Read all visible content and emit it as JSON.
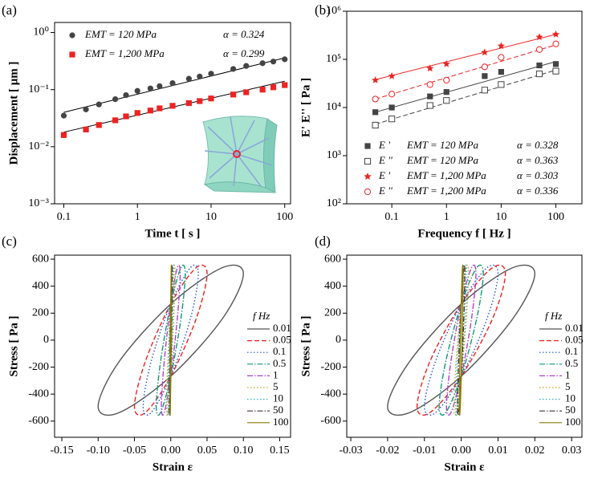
{
  "chart_data": [
    {
      "type": "scatter",
      "panel": "(a)",
      "xscale": "log",
      "yscale": "log",
      "x_label": "Time t  [ s ]",
      "y_label": "Displacement  [ μm ]",
      "xlim": [
        0.075,
        120
      ],
      "ylim": [
        0.001,
        1.5
      ],
      "xticks": [
        0.1,
        1,
        10,
        100
      ],
      "yticks": [
        {
          "value": 0.001,
          "label": "10⁻³"
        },
        {
          "value": 0.01,
          "label": "10⁻²"
        },
        {
          "value": 0.1,
          "label": "10⁻¹"
        },
        {
          "value": 1,
          "label": "10⁰"
        }
      ],
      "series": [
        {
          "name": "EMT = 120 MPa",
          "alpha": "α = 0.324",
          "color": "#444444",
          "marker": "circle",
          "x": [
            0.1,
            0.2,
            0.3,
            0.5,
            0.7,
            1,
            1.5,
            2,
            3,
            5,
            7,
            10,
            20,
            30,
            50,
            70,
            100
          ],
          "values": [
            0.035,
            0.045,
            0.055,
            0.068,
            0.08,
            0.095,
            0.105,
            0.115,
            0.13,
            0.155,
            0.17,
            0.19,
            0.23,
            0.26,
            0.29,
            0.31,
            0.34
          ],
          "fit": {
            "x": [
              0.1,
              100
            ],
            "y": [
              0.04,
              0.36
            ]
          },
          "fit_color": "#000000",
          "fit_dash": "solid"
        },
        {
          "name": "EMT = 1,200 MPa",
          "alpha": "α = 0.299",
          "color": "#ee2222",
          "marker": "square",
          "x": [
            0.1,
            0.2,
            0.3,
            0.5,
            0.7,
            1,
            1.5,
            2,
            3,
            5,
            7,
            10,
            20,
            30,
            50,
            70,
            100
          ],
          "values": [
            0.016,
            0.02,
            0.024,
            0.029,
            0.034,
            0.039,
            0.043,
            0.047,
            0.052,
            0.058,
            0.063,
            0.07,
            0.082,
            0.09,
            0.1,
            0.11,
            0.12
          ],
          "fit": {
            "x": [
              0.1,
              100
            ],
            "y": [
              0.018,
              0.14
            ]
          },
          "fit_color": "#000000",
          "fit_dash": "solid"
        }
      ]
    },
    {
      "type": "scatter",
      "panel": "(b)",
      "xscale": "log",
      "yscale": "log",
      "x_label": "Frequency  f  [ Hz ]",
      "y_label": "E'  E''  [ Pa ]",
      "xlim": [
        0.015,
        300
      ],
      "ylim": [
        100,
        1000000
      ],
      "xticks": [
        0.1,
        1,
        10,
        100
      ],
      "yticks": [
        {
          "value": 100,
          "label": "10²"
        },
        {
          "value": 1000,
          "label": "10³"
        },
        {
          "value": 10000,
          "label": "10⁴"
        },
        {
          "value": 100000,
          "label": "10⁵"
        },
        {
          "value": 1000000,
          "label": "10⁶"
        }
      ],
      "series": [
        {
          "name": "E '",
          "label": "EMT = 120 MPa",
          "alpha": "α = 0.328",
          "color": "#444444",
          "marker": "square",
          "x": [
            0.05,
            0.1,
            0.5,
            1,
            5,
            10,
            50,
            100
          ],
          "values": [
            8000,
            10000,
            17000,
            21000,
            45000,
            55000,
            75000,
            80000
          ],
          "fit": {
            "x": [
              0.05,
              100
            ],
            "y": [
              8000,
              90000
            ]
          },
          "fit_color": "#444444",
          "fit_dash": "solid"
        },
        {
          "name": "E ''",
          "label": "EMT = 120 MPa",
          "alpha": "α = 0.363",
          "color": "#444444",
          "marker": "square-open",
          "x": [
            0.05,
            0.1,
            0.5,
            1,
            5,
            10,
            50,
            100
          ],
          "values": [
            4300,
            5800,
            11000,
            14000,
            23000,
            30000,
            50000,
            57000
          ],
          "fit": {
            "x": [
              0.05,
              100
            ],
            "y": [
              4500,
              60000
            ]
          },
          "fit_color": "#444444",
          "fit_dash": "dashed"
        },
        {
          "name": "E '",
          "label": "EMT = 1,200 MPa",
          "alpha": "α = 0.303",
          "color": "#ee2222",
          "marker": "star",
          "x": [
            0.05,
            0.1,
            0.5,
            1,
            5,
            10,
            50,
            100
          ],
          "values": [
            37000,
            45000,
            65000,
            80000,
            140000,
            190000,
            290000,
            330000
          ],
          "fit": {
            "x": [
              0.05,
              100
            ],
            "y": [
              38000,
              330000
            ]
          },
          "fit_color": "#ee2222",
          "fit_dash": "solid"
        },
        {
          "name": "E ''",
          "label": "EMT = 1,200 MPa",
          "alpha": "α = 0.336",
          "color": "#ee2222",
          "marker": "circle-open",
          "x": [
            0.05,
            0.1,
            0.5,
            1,
            5,
            10,
            50,
            100
          ],
          "values": [
            15000,
            19000,
            30000,
            37000,
            70000,
            110000,
            160000,
            210000
          ],
          "fit": {
            "x": [
              0.05,
              100
            ],
            "y": [
              15000,
              200000
            ]
          },
          "fit_color": "#ee2222",
          "fit_dash": "dashed"
        }
      ]
    },
    {
      "type": "loop",
      "panel": "(c)",
      "x_label": "Strain  ε",
      "y_label": "Stress  [ Pa ]",
      "legend_title": "f  Hz",
      "xlim": [
        -0.16,
        0.165
      ],
      "ylim": [
        -720,
        630
      ],
      "xticks": [
        {
          "value": -0.15,
          "label": "-0.15"
        },
        {
          "value": -0.1,
          "label": "-0.10"
        },
        {
          "value": -0.05,
          "label": "-0.05"
        },
        {
          "value": 0,
          "label": "0.00"
        },
        {
          "value": 0.05,
          "label": "0.05"
        },
        {
          "value": 0.1,
          "label": "0.10"
        },
        {
          "value": 0.15,
          "label": "0.15"
        }
      ],
      "yticks": [
        -600,
        -400,
        -200,
        0,
        200,
        400,
        600
      ],
      "series": [
        {
          "name": "0.01",
          "color": "#555555",
          "dash": "solid",
          "x": [
            0,
            0.071,
            0.1,
            0.071,
            0,
            -0.071,
            -0.1,
            -0.071
          ],
          "values": [
            268,
            537,
            492,
            158,
            -268,
            -537,
            -492,
            -158
          ]
        },
        {
          "name": "0.05",
          "color": "#ee2222",
          "dash": "dashed",
          "x": [
            0,
            0.035,
            0.05,
            0.035,
            0,
            -0.035,
            -0.05,
            -0.035
          ],
          "values": [
            268,
            537,
            492,
            158,
            -268,
            -537,
            -492,
            -158
          ]
        },
        {
          "name": "0.1",
          "color": "#2255dd",
          "dash": "dotted",
          "x": [
            0,
            0.027,
            0.038,
            0.027,
            0,
            -0.027,
            -0.038,
            -0.027
          ],
          "values": [
            268,
            537,
            492,
            158,
            -268,
            -537,
            -492,
            -158
          ]
        },
        {
          "name": "0.5",
          "color": "#119977",
          "dash": "dashdot",
          "x": [
            0,
            0.014,
            0.02,
            0.014,
            0,
            -0.014,
            -0.02,
            -0.014
          ],
          "values": [
            268,
            537,
            492,
            158,
            -268,
            -537,
            -492,
            -158
          ]
        },
        {
          "name": "1",
          "color": "#b040d0",
          "dash": "dashdot",
          "x": [
            0,
            0.009,
            0.013,
            0.009,
            0,
            -0.009,
            -0.013,
            -0.009
          ],
          "values": [
            268,
            537,
            492,
            158,
            -268,
            -537,
            -492,
            -158
          ]
        },
        {
          "name": "5",
          "color": "#d4a017",
          "dash": "dotted",
          "x": [
            0,
            0.004,
            0.006,
            0.004,
            0,
            -0.004,
            -0.006,
            -0.004
          ],
          "values": [
            268,
            537,
            492,
            158,
            -268,
            -537,
            -492,
            -158
          ]
        },
        {
          "name": "10",
          "color": "#22b5c8",
          "dash": "dotted",
          "x": [
            0,
            0.003,
            0.004,
            0.003,
            0,
            -0.003,
            -0.004,
            -0.003
          ],
          "values": [
            268,
            537,
            492,
            158,
            -268,
            -537,
            -492,
            -158
          ]
        },
        {
          "name": "50",
          "color": "#443333",
          "dash": "dashdot",
          "x": [
            0,
            0.0014,
            0.002,
            0.0014,
            0,
            -0.0014,
            -0.002,
            -0.0014
          ],
          "values": [
            268,
            537,
            492,
            158,
            -268,
            -537,
            -492,
            -158
          ]
        },
        {
          "name": "100",
          "color": "#8a7a00",
          "dash": "solid",
          "x": [
            0,
            0.0007,
            0.001,
            0.0007,
            0,
            -0.0007,
            -0.001,
            -0.0007
          ],
          "values": [
            268,
            537,
            492,
            158,
            -268,
            -537,
            -492,
            -158
          ]
        }
      ]
    },
    {
      "type": "loop",
      "panel": "(d)",
      "x_label": "Strain  ε",
      "y_label": "Stress  [ Pa ]",
      "legend_title": "f  Hz",
      "xlim": [
        -0.0311,
        0.0328
      ],
      "ylim": [
        -720,
        630
      ],
      "xticks": [
        {
          "value": -0.03,
          "label": "-0.03"
        },
        {
          "value": -0.02,
          "label": "-0.02"
        },
        {
          "value": -0.01,
          "label": "-0.01"
        },
        {
          "value": 0,
          "label": "0.00"
        },
        {
          "value": 0.01,
          "label": "0.01"
        },
        {
          "value": 0.02,
          "label": "0.02"
        },
        {
          "value": 0.03,
          "label": "0.03"
        }
      ],
      "yticks": [
        -600,
        -400,
        -200,
        0,
        200,
        400,
        600
      ],
      "series": [
        {
          "name": "0.01",
          "color": "#555555",
          "dash": "solid",
          "x": [
            0,
            0.014,
            0.02,
            0.014,
            0,
            -0.014,
            -0.02,
            -0.014
          ],
          "values": [
            268,
            537,
            492,
            158,
            -268,
            -537,
            -492,
            -158
          ]
        },
        {
          "name": "0.05",
          "color": "#ee2222",
          "dash": "dashed",
          "x": [
            0,
            0.0085,
            0.012,
            0.0085,
            0,
            -0.0085,
            -0.012,
            -0.0085
          ],
          "values": [
            268,
            537,
            492,
            158,
            -268,
            -537,
            -492,
            -158
          ]
        },
        {
          "name": "0.1",
          "color": "#2255dd",
          "dash": "dotted",
          "x": [
            0,
            0.007,
            0.01,
            0.007,
            0,
            -0.007,
            -0.01,
            -0.007
          ],
          "values": [
            268,
            537,
            492,
            158,
            -268,
            -537,
            -492,
            -158
          ]
        },
        {
          "name": "0.5",
          "color": "#119977",
          "dash": "dashdot",
          "x": [
            0,
            0.0042,
            0.006,
            0.0042,
            0,
            -0.0042,
            -0.006,
            -0.0042
          ],
          "values": [
            268,
            537,
            492,
            158,
            -268,
            -537,
            -492,
            -158
          ]
        },
        {
          "name": "1",
          "color": "#b040d0",
          "dash": "dashdot",
          "x": [
            0,
            0.0028,
            0.004,
            0.0028,
            0,
            -0.0028,
            -0.004,
            -0.0028
          ],
          "values": [
            268,
            537,
            492,
            158,
            -268,
            -537,
            -492,
            -158
          ]
        },
        {
          "name": "5",
          "color": "#d4a017",
          "dash": "dotted",
          "x": [
            0,
            0.0014,
            0.002,
            0.0014,
            0,
            -0.0014,
            -0.002,
            -0.0014
          ],
          "values": [
            268,
            537,
            492,
            158,
            -268,
            -537,
            -492,
            -158
          ]
        },
        {
          "name": "10",
          "color": "#22b5c8",
          "dash": "dotted",
          "x": [
            0,
            0.0011,
            0.0015,
            0.0011,
            0,
            -0.0011,
            -0.0015,
            -0.0011
          ],
          "values": [
            268,
            537,
            492,
            158,
            -268,
            -537,
            -492,
            -158
          ]
        },
        {
          "name": "50",
          "color": "#443333",
          "dash": "dashdot",
          "x": [
            0,
            0.0007,
            0.001,
            0.0007,
            0,
            -0.0007,
            -0.001,
            -0.0007
          ],
          "values": [
            268,
            537,
            492,
            158,
            -268,
            -537,
            -492,
            -158
          ]
        },
        {
          "name": "100",
          "color": "#8a7a00",
          "dash": "solid",
          "x": [
            0,
            0.00035,
            0.0005,
            0.00035,
            0,
            -0.00035,
            -0.0005,
            -0.00035
          ],
          "values": [
            268,
            537,
            492,
            158,
            -268,
            -537,
            -492,
            -158
          ]
        }
      ]
    }
  ]
}
